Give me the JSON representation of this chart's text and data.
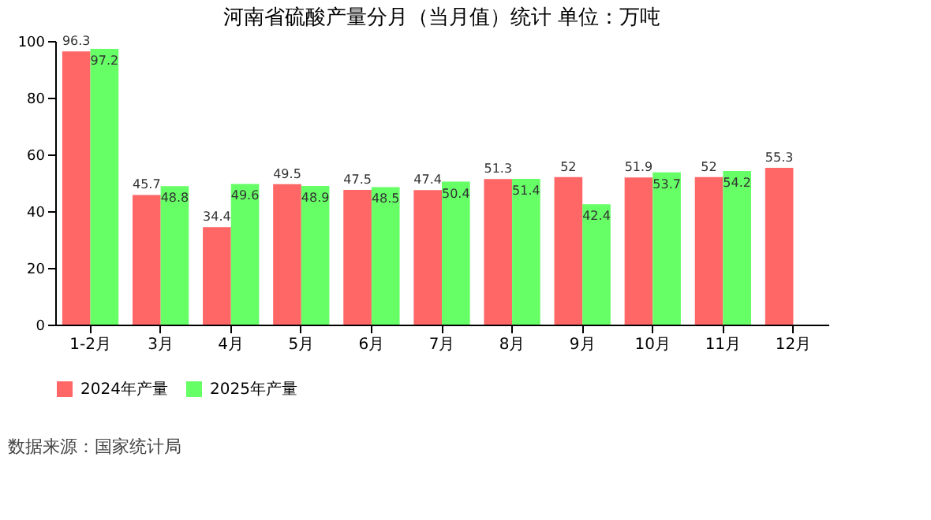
{
  "chart_data": {
    "type": "bar",
    "title": "河南省硫酸产量分月（当月值）统计  单位：万吨",
    "categories": [
      "1-2月",
      "3月",
      "4月",
      "5月",
      "6月",
      "7月",
      "8月",
      "9月",
      "10月",
      "11月",
      "12月"
    ],
    "series": [
      {
        "name": "2024年产量",
        "color": "#ff6666",
        "values": [
          96.3,
          45.7,
          34.4,
          49.5,
          47.5,
          47.4,
          51.3,
          52,
          51.9,
          52,
          55.3
        ]
      },
      {
        "name": "2025年产量",
        "color": "#66ff66",
        "values": [
          97.2,
          48.8,
          49.6,
          48.9,
          48.5,
          50.4,
          51.4,
          42.4,
          53.7,
          54.2,
          null
        ]
      }
    ],
    "ylim": [
      0,
      100
    ],
    "yticks": [
      0,
      20,
      40,
      60,
      80,
      100
    ],
    "grid": false,
    "legend": "bottom",
    "data_labels": true,
    "annotations": [
      "数据来源：国家统计局"
    ]
  }
}
